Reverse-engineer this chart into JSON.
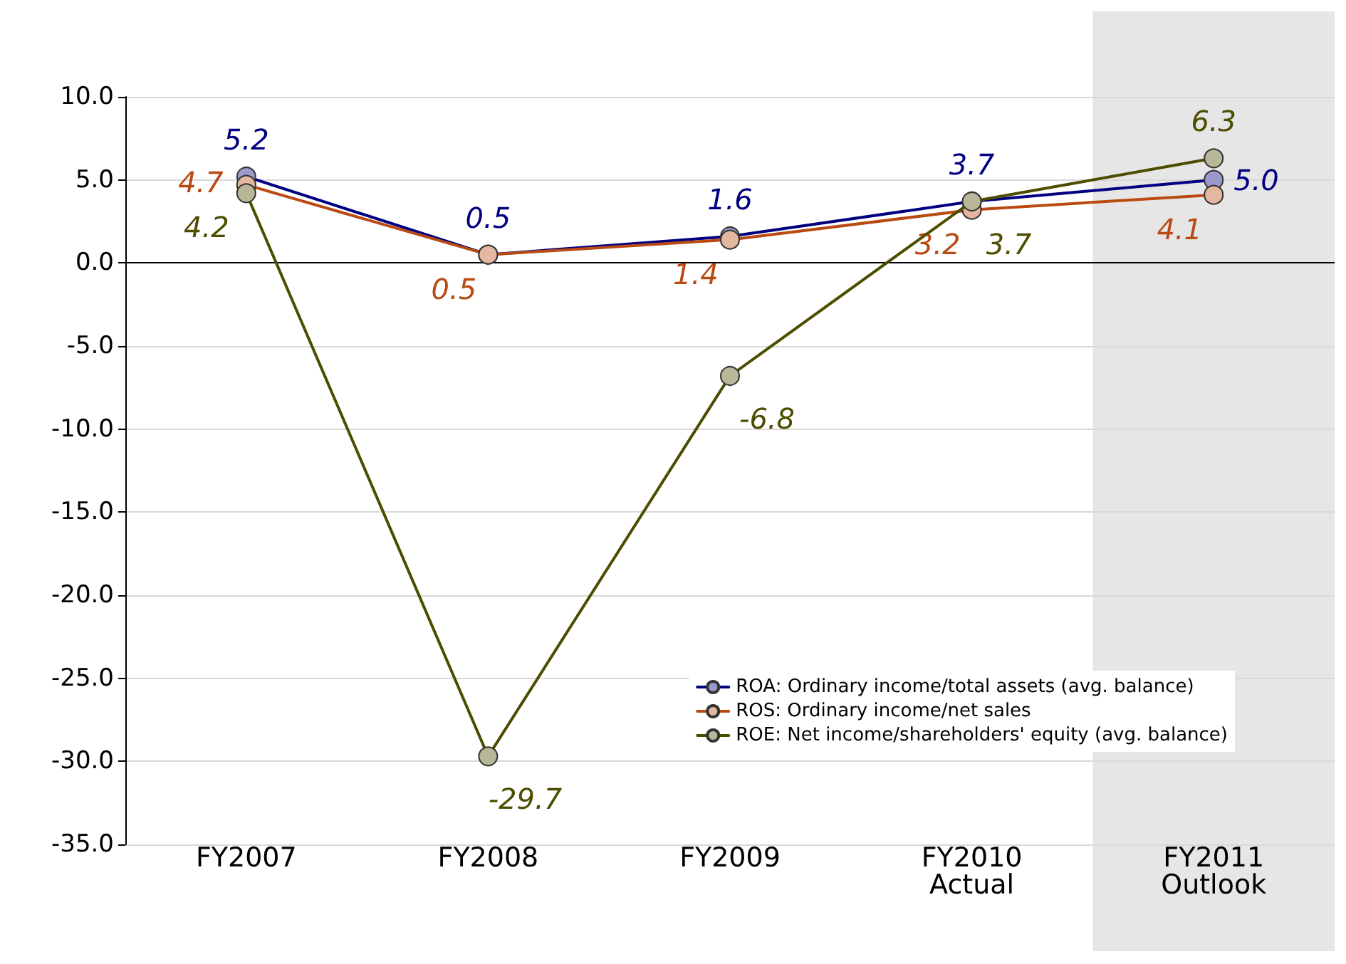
{
  "chart_data": {
    "type": "line",
    "categories": [
      "FY2007",
      "FY2008",
      "FY2009",
      "FY2010\nActual",
      "FY2011\nOutlook"
    ],
    "series": [
      {
        "name": "ROA: Ordinary income/total assets (avg. balance)",
        "color": "#000080",
        "values": [
          5.2,
          0.5,
          1.6,
          3.7,
          5.0
        ],
        "value_labels": [
          "5.2",
          "0.5",
          "1.6",
          "3.7",
          "5.0"
        ]
      },
      {
        "name": "ROS: Ordinary income/net sales",
        "color": "#b84a12",
        "values": [
          4.7,
          0.5,
          1.4,
          3.2,
          4.1
        ],
        "value_labels": [
          "4.7",
          "0.5",
          "1.4",
          "3.2",
          "4.1"
        ]
      },
      {
        "name": "ROE: Net income/shareholders' equity (avg. balance)",
        "color": "#4d4d00",
        "values": [
          4.2,
          -29.7,
          -6.8,
          3.7,
          6.3
        ],
        "value_labels": [
          "4.2",
          "-29.7",
          "-6.8",
          "3.7",
          "6.3"
        ]
      }
    ],
    "ylim": [
      -35,
      10
    ],
    "yticks": [
      {
        "value": -35,
        "label": "-35.0"
      },
      {
        "value": -30,
        "label": "-30.0"
      },
      {
        "value": -25,
        "label": "-25.0"
      },
      {
        "value": -20,
        "label": "-20.0"
      },
      {
        "value": -15,
        "label": "-15.0"
      },
      {
        "value": -10,
        "label": "-10.0"
      },
      {
        "value": -5,
        "label": "-5.0"
      },
      {
        "value": 0,
        "label": "0.0"
      },
      {
        "value": 5,
        "label": "5.0"
      },
      {
        "value": 10,
        "label": "10.0"
      }
    ],
    "bands": [
      {
        "axis": "x",
        "from": "FY2011\nOutlook",
        "to": "FY2011\nOutlook",
        "color": "#e6e6e6"
      }
    ],
    "grid": "y",
    "legend": "bottom right",
    "marker": "circle",
    "line_style": "solid"
  }
}
